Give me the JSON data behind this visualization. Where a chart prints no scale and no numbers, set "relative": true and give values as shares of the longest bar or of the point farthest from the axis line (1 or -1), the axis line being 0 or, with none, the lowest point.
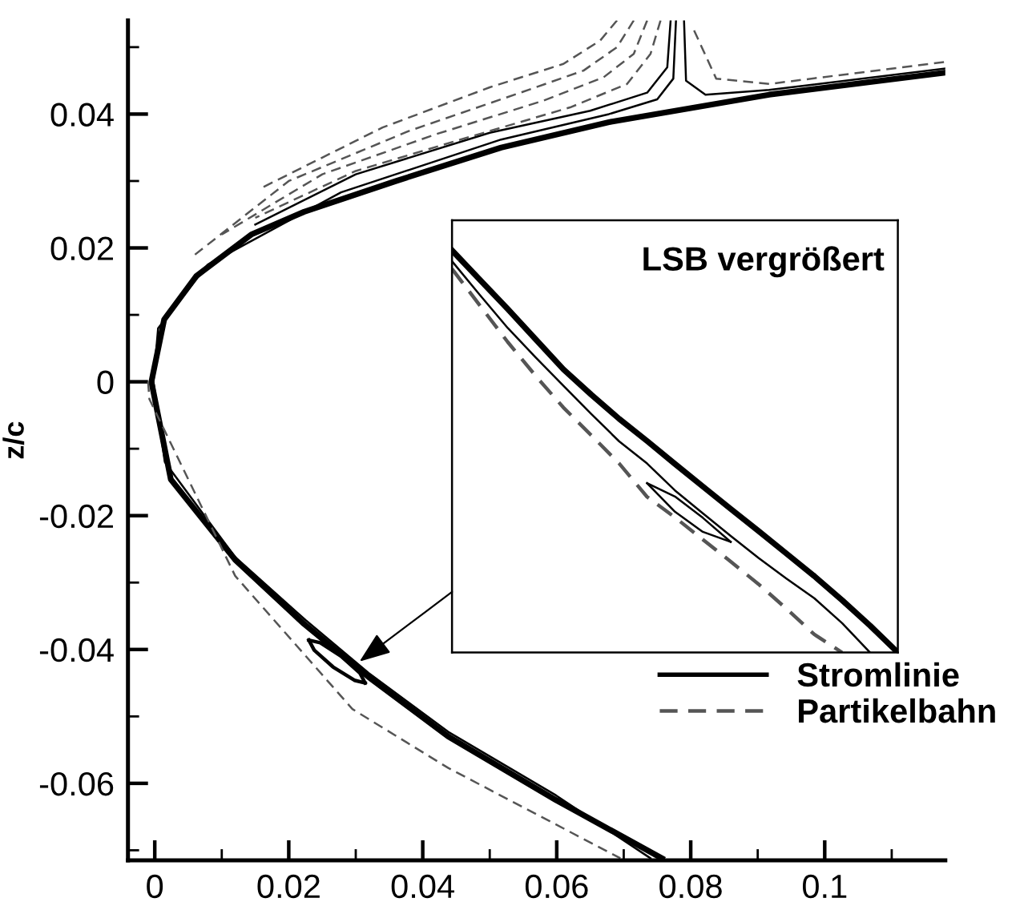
{
  "chart_data": [
    {
      "type": "line",
      "ylabel": "z/c",
      "xlim": [
        -0.004,
        0.118
      ],
      "ylim": [
        -0.0715,
        0.054
      ],
      "xticks": [
        0,
        {
          "value": 0.01,
          "label": null
        },
        0.02,
        {
          "value": 0.03,
          "label": null
        },
        0.04,
        {
          "value": 0.05,
          "label": null
        },
        0.06,
        {
          "value": 0.07,
          "label": null
        },
        0.08,
        {
          "value": 0.09,
          "label": null
        },
        0.1,
        {
          "value": 0.11,
          "label": null
        }
      ],
      "yticks": [
        {
          "value": -0.07,
          "label": null
        },
        -0.06,
        {
          "value": -0.05,
          "label": null
        },
        -0.04,
        {
          "value": -0.03,
          "label": null
        },
        -0.02,
        {
          "value": -0.01,
          "label": null
        },
        0,
        {
          "value": 0.01,
          "label": null
        },
        0.02,
        {
          "value": 0.03,
          "label": null
        },
        0.04,
        {
          "value": 0.05,
          "label": null
        }
      ],
      "grid": false,
      "legend": "bottom right",
      "series": [
        {
          "name": "Stromlinie",
          "color": "#000000",
          "line_style": "solid",
          "x": [
            0.118,
            0.0917,
            0.0678,
            0.0517,
            0.036,
            0.0223,
            0.0144,
            0.0062,
            0.0014,
            -0.0005,
            0.0024,
            0.012,
            0.0223,
            0.0319,
            0.0438,
            0.0599,
            0.0757
          ],
          "values": [
            0.0462,
            0.0429,
            0.0388,
            0.035,
            0.03,
            0.0254,
            0.022,
            0.0158,
            0.0093,
            0.0,
            -0.0146,
            -0.0266,
            -0.0362,
            -0.0441,
            -0.053,
            -0.0625,
            -0.0712
          ]
        },
        {
          "color": "#000000",
          "line_style": "solid",
          "x": [
            0.0778,
            0.0774,
            0.075,
            0.0678,
            0.0517,
            0.0278,
            0.0079,
            0.0005,
            -0.0002,
            0.0015,
            0.012,
            0.0225,
            0.0319,
            0.0438,
            0.0599,
            0.074
          ],
          "values": [
            0.054,
            0.0453,
            0.0422,
            0.04,
            0.0362,
            0.0283,
            0.0175,
            0.008,
            0.0,
            -0.012,
            -0.0262,
            -0.0356,
            -0.0435,
            -0.0523,
            -0.0618,
            -0.0712
          ]
        },
        {
          "color": "#000000",
          "line_style": "solid",
          "x": [
            0.079,
            0.0793,
            0.0822,
            0.0917,
            0.118
          ],
          "values": [
            0.054,
            0.045,
            0.0429,
            0.0436,
            0.0468
          ]
        },
        {
          "color": "#000000",
          "line_style": "solid",
          "x": [
            0.077,
            0.0765,
            0.0735,
            0.065,
            0.05,
            0.03,
            0.015
          ],
          "values": [
            0.054,
            0.047,
            0.0432,
            0.0405,
            0.0372,
            0.031,
            0.0235
          ]
        },
        {
          "name": "Partikelbahn",
          "color": "#555555",
          "line_style": "dashed",
          "x": [
            0.0805,
            0.0838,
            0.0917,
            0.118
          ],
          "values": [
            0.0525,
            0.0453,
            0.0445,
            0.0478
          ]
        },
        {
          "color": "#555555",
          "line_style": "dashed",
          "x": [
            0.0755,
            0.074,
            0.0705,
            0.062,
            0.045,
            0.03,
            0.015
          ],
          "values": [
            0.054,
            0.049,
            0.0445,
            0.041,
            0.036,
            0.0315,
            0.0245
          ]
        },
        {
          "color": "#555555",
          "line_style": "dashed",
          "x": [
            0.0735,
            0.0715,
            0.067,
            0.058,
            0.042,
            0.025,
            0.01
          ],
          "values": [
            0.054,
            0.049,
            0.0455,
            0.042,
            0.037,
            0.031,
            0.022
          ]
        },
        {
          "color": "#555555",
          "line_style": "dashed",
          "x": [
            0.0715,
            0.069,
            0.064,
            0.054,
            0.038,
            0.02,
            0.006
          ],
          "values": [
            0.054,
            0.05,
            0.0465,
            0.043,
            0.0375,
            0.03,
            0.019
          ]
        },
        {
          "color": "#555555",
          "line_style": "dashed",
          "x": [
            0.069,
            0.0665,
            0.061,
            0.05,
            0.034,
            0.016
          ],
          "values": [
            0.054,
            0.051,
            0.0475,
            0.044,
            0.038,
            0.029
          ]
        },
        {
          "color": "#555555",
          "line_style": "dashed",
          "x": [
            -0.001,
            -0.0008,
            0.012,
            0.0295,
            0.0438,
            0.0695
          ],
          "values": [
            0.0,
            -0.0026,
            -0.029,
            -0.0489,
            -0.0577,
            -0.0712
          ]
        },
        {
          "color": "#000000",
          "line_style": "solid",
          "x": [
            0.023,
            0.0247,
            0.0278,
            0.0306,
            0.0314
          ],
          "values": [
            -0.0386,
            -0.039,
            -0.041,
            -0.0435,
            -0.045
          ]
        },
        {
          "color": "#000000",
          "line_style": "solid",
          "x": [
            0.023,
            0.0238,
            0.0266,
            0.0298,
            0.0314
          ],
          "values": [
            -0.0386,
            -0.0401,
            -0.0426,
            -0.0446,
            -0.045
          ]
        }
      ]
    },
    {
      "type": "line",
      "title": "LSB vergrößert",
      "relative": true,
      "grid": false,
      "categories": [
        null,
        null,
        null,
        null,
        null,
        null,
        null,
        null,
        null,
        null,
        null,
        null,
        null,
        null,
        null,
        null,
        null
      ],
      "series": [
        {
          "color": "#000000",
          "line_style": "solid",
          "values": [
            1,
            0.927,
            0.854,
            0.779,
            0.704,
            0.641,
            0.581,
            0.526,
            0.469,
            0.413,
            0.357,
            0.302,
            0.246,
            0.19,
            0.13,
            0.067,
            0
          ]
        },
        {
          "color": "#000000",
          "line_style": "solid",
          "values": [
            0.973,
            0.889,
            0.807,
            0.734,
            0.663,
            0.593,
            0.525,
            0.47,
            0.403,
            0.346,
            0.29,
            0.235,
            0.184,
            0.135,
            0.073,
            0,
            null
          ]
        },
        {
          "color": "#555555",
          "line_style": "dashed",
          "values": [
            0.954,
            0.863,
            0.772,
            0.688,
            0.609,
            0.54,
            0.47,
            0.387,
            0.336,
            0.281,
            0.226,
            0.17,
            0.109,
            0.045,
            0,
            null,
            null
          ]
        },
        {
          "color": "#000000",
          "line_style": "solid",
          "values": [
            null,
            null,
            null,
            null,
            null,
            null,
            null,
            0.421,
            0.388,
            0.335,
            0.275,
            null,
            null,
            null,
            null,
            null,
            null
          ]
        },
        {
          "color": "#000000",
          "line_style": "solid",
          "values": [
            null,
            null,
            null,
            null,
            null,
            null,
            null,
            0.421,
            0.35,
            0.3,
            0.275,
            null,
            null,
            null,
            null,
            null,
            null
          ]
        }
      ]
    }
  ]
}
